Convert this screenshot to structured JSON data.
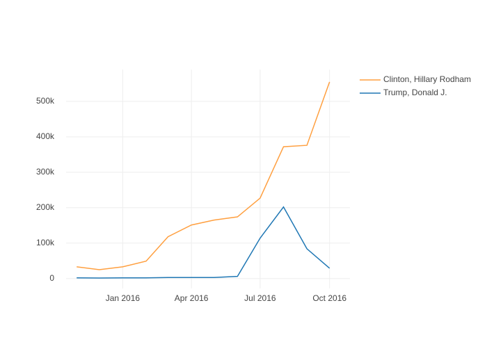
{
  "chart_data": {
    "type": "line",
    "x": [
      "2015-11",
      "2015-12",
      "2016-01",
      "2016-02",
      "2016-03",
      "2016-04",
      "2016-05",
      "2016-06",
      "2016-07",
      "2016-08",
      "2016-09",
      "2016-10"
    ],
    "series": [
      {
        "name": "Clinton, Hillary Rodham",
        "color": "#ff9f3f",
        "values": [
          33000,
          25000,
          33000,
          49000,
          118000,
          151000,
          165000,
          174000,
          227000,
          372000,
          376000,
          555000
        ]
      },
      {
        "name": "Trump, Donald J.",
        "color": "#1f77b4",
        "values": [
          2000,
          1500,
          2000,
          2000,
          3000,
          3000,
          3000,
          6000,
          114000,
          202000,
          84000,
          29000
        ]
      }
    ],
    "xlim": [
      "2015-10-18",
      "2016-10-28"
    ],
    "xticks": [
      {
        "value": "2016-01",
        "label": "Jan 2016"
      },
      {
        "value": "2016-04",
        "label": "Apr 2016"
      },
      {
        "value": "2016-07",
        "label": "Jul 2016"
      },
      {
        "value": "2016-10",
        "label": "Oct 2016"
      }
    ],
    "ylim": [
      -28000,
      590000
    ],
    "yticks": [
      0,
      {
        "value": 100000,
        "label": "100k"
      },
      {
        "value": 200000,
        "label": "200k"
      },
      {
        "value": 300000,
        "label": "300k"
      },
      {
        "value": 400000,
        "label": "400k"
      },
      {
        "value": 500000,
        "label": "500k"
      }
    ],
    "grid": true,
    "legend": "top-right"
  }
}
